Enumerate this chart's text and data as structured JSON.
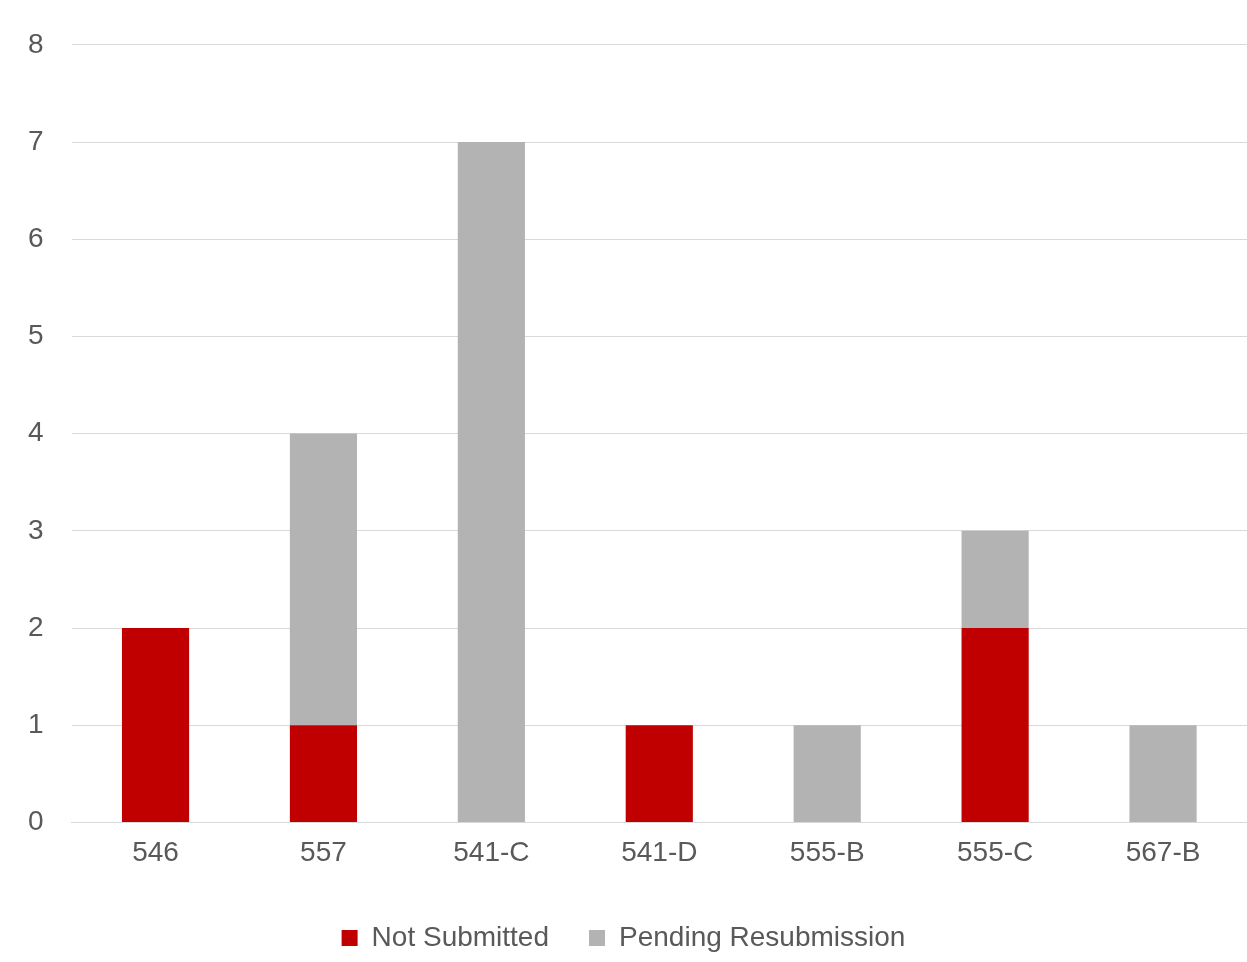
{
  "chart_data": {
    "type": "bar",
    "stacked": true,
    "categories": [
      "546",
      "557",
      "541-C",
      "541-D",
      "555-B",
      "555-C",
      "567-B"
    ],
    "series": [
      {
        "name": "Not Submitted",
        "color": "#c00000",
        "values": [
          2,
          1,
          0,
          1,
          0,
          2,
          0
        ]
      },
      {
        "name": "Pending Resubmission",
        "color": "#b3b3b3",
        "values": [
          0,
          3,
          7,
          0,
          1,
          1,
          1
        ]
      }
    ],
    "ylim": [
      0,
      8
    ],
    "yticks": [
      0,
      1,
      2,
      3,
      4,
      5,
      6,
      7,
      8
    ],
    "grid": "y",
    "legend": "bottom"
  }
}
